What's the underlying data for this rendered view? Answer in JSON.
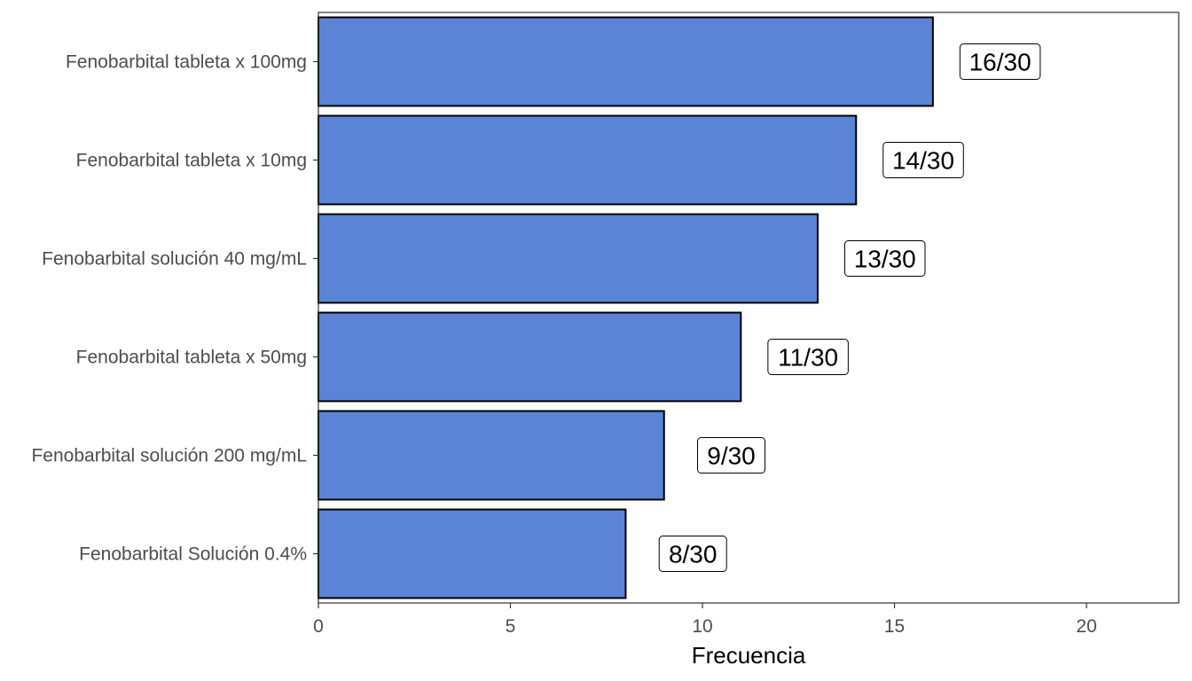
{
  "chart_data": {
    "type": "bar",
    "orientation": "horizontal",
    "categories": [
      "Fenobarbital tableta x 100mg",
      "Fenobarbital tableta x 10mg",
      "Fenobarbital solución 40 mg/mL",
      "Fenobarbital tableta x 50mg",
      "Fenobarbital solución 200 mg/mL",
      "Fenobarbital Solución 0.4%"
    ],
    "values": [
      16,
      14,
      13,
      11,
      9,
      8
    ],
    "data_labels": [
      "16/30",
      "14/30",
      "13/30",
      "11/30",
      "9/30",
      "8/30"
    ],
    "title": "",
    "xlabel": "Frecuencia",
    "ylabel": "",
    "xlim": [
      0,
      22.4
    ],
    "x_ticks": [
      0,
      5,
      10,
      15,
      20
    ],
    "bar_color": "#5b84d6",
    "bar_outline_color": "#000000",
    "grid": false
  }
}
